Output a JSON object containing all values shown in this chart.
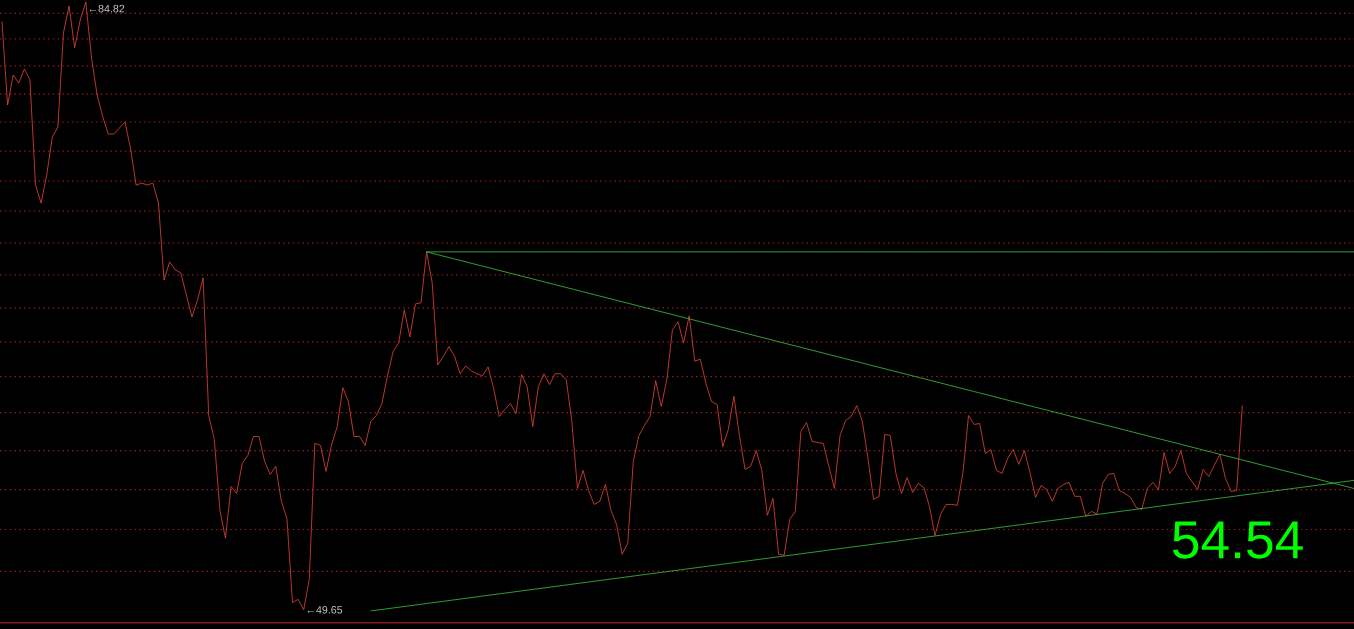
{
  "chart_data": {
    "type": "line",
    "log": "y",
    "grid": "y",
    "categories": [
      null,
      null,
      null,
      null,
      null,
      null,
      null,
      null,
      null,
      null,
      null,
      null,
      null,
      null,
      null,
      null,
      null,
      null,
      null,
      null,
      null,
      null,
      null,
      null,
      null,
      null,
      null,
      null,
      null,
      null,
      null,
      null,
      null,
      null,
      null,
      null,
      null,
      null,
      null,
      null,
      null,
      null,
      null,
      null,
      null,
      null,
      null,
      null,
      null,
      null,
      null,
      null,
      null,
      null,
      null,
      null,
      null,
      null,
      null,
      null,
      null,
      null,
      null,
      null,
      null,
      null,
      null,
      null,
      null,
      null,
      null,
      null,
      null,
      null,
      null,
      null,
      null,
      null,
      null,
      null,
      null,
      null,
      null,
      null,
      null,
      null,
      null,
      null,
      null,
      null,
      null,
      null,
      null,
      null,
      null,
      null,
      null,
      null,
      null,
      null,
      null,
      null,
      null,
      null,
      null,
      null,
      null,
      null,
      null,
      null,
      null,
      null,
      null,
      null,
      null,
      null,
      null,
      null,
      null,
      null,
      null,
      null,
      null,
      null,
      null,
      null,
      null,
      null,
      null,
      null,
      null,
      null,
      null,
      null,
      null,
      null,
      null,
      null,
      null,
      null,
      null,
      null,
      null,
      null,
      null,
      null,
      null,
      null,
      null,
      null,
      null,
      null,
      null,
      null,
      null,
      null,
      null,
      null,
      null,
      null,
      null,
      null,
      null,
      null,
      null,
      null,
      null,
      null,
      null,
      null,
      null,
      null,
      null,
      null,
      null,
      null,
      null,
      null,
      null,
      null,
      null,
      null,
      null,
      null,
      null,
      null,
      null,
      null,
      null,
      null,
      null,
      null,
      null,
      null,
      null,
      null,
      null,
      null,
      null,
      null,
      null,
      null,
      null,
      null,
      null,
      null,
      null,
      null,
      null,
      null,
      null,
      null,
      null,
      null,
      null,
      null,
      null,
      null,
      null,
      null,
      null,
      null,
      null,
      null,
      null,
      null,
      null,
      null,
      null,
      null,
      null,
      null,
      null,
      null,
      null,
      null,
      null,
      null,
      null,
      null,
      null,
      null,
      null
    ],
    "ylim": [
      49.08,
      84.97
    ],
    "yticks": [
      {
        "value": 83.97,
        "label": null
      },
      {
        "value": 82.1,
        "label": null
      },
      {
        "value": 80.17,
        "label": null
      },
      {
        "value": 78.22,
        "label": null
      },
      {
        "value": 76.31,
        "label": null
      },
      {
        "value": 74.38,
        "label": null
      },
      {
        "value": 72.44,
        "label": null
      },
      {
        "value": 70.55,
        "label": null
      },
      {
        "value": 68.59,
        "label": null
      },
      {
        "value": 66.69,
        "label": null
      },
      {
        "value": 64.78,
        "label": null
      },
      {
        "value": 62.87,
        "label": null
      },
      {
        "value": 60.97,
        "label": null
      },
      {
        "value": 59.07,
        "label": null
      },
      {
        "value": 57.13,
        "label": null
      },
      {
        "value": 55.2,
        "label": null
      },
      {
        "value": 53.29,
        "label": null
      },
      {
        "value": 51.36,
        "label": null
      }
    ],
    "series": [
      {
        "color": "#e8443a",
        "values": [
          83.35,
          77.47,
          79.54,
          78.99,
          79.96,
          79.2,
          72.19,
          71.05,
          72.83,
          75.31,
          75.98,
          82.54,
          84.52,
          81.46,
          83.49,
          84.82,
          80.81,
          78.22,
          76.72,
          75.51,
          75.51,
          75.91,
          76.31,
          74.58,
          72.19,
          72.31,
          72.19,
          72.31,
          71.05,
          66.4,
          67.46,
          66.99,
          66.81,
          65.53,
          64.27,
          65.24,
          66.52,
          58.92,
          57.69,
          54.2,
          52.88,
          55.35,
          55.01,
          56.49,
          56.88,
          57.84,
          57.84,
          56.59,
          55.94,
          56.34,
          54.63,
          53.81,
          49.97,
          50.11,
          49.65,
          50.99,
          57.49,
          57.39,
          56.09,
          57.44,
          58.35,
          60.39,
          59.65,
          57.84,
          57.84,
          57.39,
          58.61,
          58.92,
          59.55,
          61.02,
          62.34,
          62.82,
          64.67,
          63.15,
          65.01,
          65.07,
          68.06,
          66.23,
          61.6,
          62.08,
          62.61,
          62.08,
          61.13,
          61.55,
          61.29,
          61.13,
          61.02,
          61.5,
          60.34,
          58.87,
          59.23,
          59.55,
          59.02,
          61.08,
          60.44,
          58.35,
          60.44,
          61.13,
          60.55,
          61.13,
          61.13,
          60.81,
          58.61,
          55.25,
          56.14,
          55.15,
          54.48,
          54.63,
          55.45,
          54.2,
          53.53,
          52.14,
          52.65,
          56.59,
          57.89,
          58.41,
          58.87,
          60.76,
          59.39,
          60.81,
          63.54,
          63.99,
          62.82,
          64.33,
          61.81,
          61.92,
          60.6,
          59.65,
          59.49,
          57.33,
          58.2,
          59.92,
          57.89,
          56.19,
          56.34,
          57.13,
          56.14,
          53.96,
          54.77,
          52.14,
          52.1,
          53.77,
          54.15,
          58.1,
          58.56,
          57.59,
          57.54,
          57.49,
          56.34,
          55.25,
          57.89,
          58.66,
          58.87,
          59.44,
          58.61,
          56.73,
          54.72,
          54.87,
          57.95,
          57.89,
          55.99,
          55.01,
          55.79,
          55.06,
          55.5,
          55.3,
          54.39,
          53.01,
          54.01,
          54.48,
          54.48,
          54.44,
          56.04,
          58.92,
          58.46,
          58.51,
          56.98,
          57.18,
          56.14,
          55.99,
          56.73,
          57.18,
          56.44,
          57.13,
          56.04,
          54.82,
          55.4,
          55.2,
          54.63,
          55.25,
          55.45,
          55.55,
          54.87,
          54.87,
          53.91,
          54.15,
          54.01,
          55.5,
          55.94,
          55.99,
          55.15,
          55.01,
          54.82,
          54.34,
          54.24,
          55.25,
          55.55,
          55.2,
          57.03,
          55.99,
          56.34,
          57.13,
          55.99,
          55.59,
          55.2,
          56.19,
          55.84,
          56.39,
          56.93,
          55.74,
          55.11,
          55.15,
          59.42,
          null,
          null,
          null,
          null,
          null,
          null,
          null,
          null,
          null,
          null,
          null,
          null,
          null,
          null,
          null,
          null,
          null,
          null,
          null,
          null
        ],
        "value_labels": [
          null,
          null,
          null,
          null,
          null,
          null,
          null,
          null,
          null,
          null,
          null,
          null,
          null,
          null,
          null,
          "←84.82",
          null,
          null,
          null,
          null,
          null,
          null,
          null,
          null,
          null,
          null,
          null,
          null,
          null,
          null,
          null,
          null,
          null,
          null,
          null,
          null,
          null,
          null,
          null,
          null,
          null,
          null,
          null,
          null,
          null,
          null,
          null,
          null,
          null,
          null,
          null,
          null,
          null,
          null,
          "←49.65",
          null,
          null,
          null,
          null,
          null,
          null,
          null,
          null,
          null,
          null,
          null,
          null,
          null,
          null,
          null,
          null,
          null,
          null,
          null,
          null,
          null,
          null,
          null,
          null,
          null,
          null,
          null,
          null,
          null,
          null,
          null,
          null,
          null,
          null,
          null,
          null,
          null,
          null,
          null,
          null,
          null,
          null,
          null,
          null,
          null,
          null,
          null,
          null,
          null,
          null,
          null,
          null,
          null,
          null,
          null,
          null,
          null,
          null,
          null,
          null,
          null,
          null,
          null,
          null,
          null,
          null,
          null,
          null,
          null,
          null,
          null,
          null,
          null,
          null,
          null,
          null,
          null,
          null,
          null,
          null,
          null,
          null,
          null,
          null,
          null,
          null,
          null,
          null,
          null,
          null,
          null,
          null,
          null,
          null,
          null,
          null,
          null,
          null,
          null,
          null,
          null,
          null,
          null,
          null,
          null,
          null,
          null,
          null,
          null,
          null,
          null,
          null,
          null,
          null,
          null,
          null,
          null,
          null,
          null,
          null,
          null,
          null,
          null,
          null,
          null,
          null,
          null,
          null,
          null,
          null,
          null,
          null,
          null,
          null,
          null,
          null,
          null,
          null,
          null,
          null,
          null,
          null,
          null,
          null,
          null,
          null,
          null,
          null,
          null,
          null,
          null,
          null,
          null,
          null,
          null,
          null,
          null,
          null,
          null,
          null,
          null,
          null,
          null,
          null,
          null,
          null,
          null,
          null,
          null,
          null,
          null,
          null,
          null,
          null,
          null,
          null,
          null,
          null,
          null,
          null,
          null,
          null,
          null,
          null,
          null,
          null,
          null,
          null
        ]
      },
      {
        "type": "line",
        "color": "#40c040",
        "values": [
          null,
          null,
          null,
          null,
          null,
          null,
          null,
          null,
          null,
          null,
          null,
          null,
          null,
          null,
          null,
          null,
          null,
          null,
          null,
          null,
          null,
          null,
          null,
          null,
          null,
          null,
          null,
          null,
          null,
          null,
          null,
          null,
          null,
          null,
          null,
          null,
          null,
          null,
          null,
          null,
          null,
          null,
          null,
          null,
          null,
          null,
          null,
          null,
          null,
          null,
          null,
          null,
          null,
          null,
          null,
          null,
          null,
          null,
          null,
          null,
          null,
          null,
          null,
          null,
          null,
          null,
          null,
          null,
          null,
          null,
          null,
          null,
          null,
          null,
          null,
          null,
          68.06,
          null,
          null,
          null,
          null,
          null,
          null,
          null,
          null,
          null,
          null,
          null,
          null,
          null,
          null,
          null,
          null,
          null,
          null,
          null,
          null,
          null,
          null,
          null,
          null,
          null,
          null,
          null,
          null,
          null,
          null,
          null,
          null,
          null,
          null,
          null,
          null,
          null,
          null,
          null,
          null,
          null,
          null,
          null,
          null,
          null,
          null,
          null,
          null,
          null,
          null,
          null,
          null,
          null,
          null,
          null,
          null,
          null,
          null,
          null,
          null,
          null,
          null,
          null,
          null,
          null,
          null,
          null,
          null,
          null,
          null,
          null,
          null,
          null,
          null,
          null,
          null,
          null,
          null,
          null,
          null,
          null,
          null,
          null,
          null,
          null,
          null,
          null,
          null,
          null,
          null,
          null,
          null,
          null,
          null,
          null,
          null,
          null,
          null,
          null,
          null,
          null,
          null,
          null,
          null,
          null,
          null,
          null,
          null,
          null,
          null,
          null,
          null,
          null,
          null,
          null,
          null,
          null,
          null,
          null,
          null,
          null,
          null,
          null,
          null,
          null,
          null,
          null,
          null,
          null,
          null,
          null,
          null,
          null,
          null,
          null,
          null,
          null,
          null,
          null,
          null,
          null,
          null,
          null,
          null,
          null,
          null,
          null,
          null,
          null,
          null,
          null,
          null,
          null,
          null,
          null,
          null,
          null,
          null,
          null,
          null,
          null,
          null,
          null,
          null,
          null,
          68.06
        ]
      },
      {
        "type": "line",
        "color": "#40c040",
        "values": [
          null,
          null,
          null,
          null,
          null,
          null,
          null,
          null,
          null,
          null,
          null,
          null,
          null,
          null,
          null,
          null,
          null,
          null,
          null,
          null,
          null,
          null,
          null,
          null,
          null,
          null,
          null,
          null,
          null,
          null,
          null,
          null,
          null,
          null,
          null,
          null,
          null,
          null,
          null,
          null,
          null,
          null,
          null,
          null,
          null,
          null,
          null,
          null,
          null,
          null,
          null,
          null,
          null,
          null,
          null,
          null,
          null,
          null,
          null,
          null,
          null,
          null,
          null,
          null,
          null,
          null,
          null,
          null,
          null,
          null,
          null,
          null,
          null,
          null,
          null,
          null,
          68.06,
          null,
          null,
          null,
          null,
          null,
          null,
          null,
          null,
          null,
          null,
          null,
          null,
          null,
          null,
          null,
          null,
          null,
          null,
          null,
          null,
          null,
          null,
          null,
          null,
          null,
          null,
          null,
          null,
          null,
          null,
          null,
          null,
          null,
          null,
          null,
          null,
          null,
          null,
          null,
          null,
          null,
          null,
          null,
          null,
          null,
          null,
          null,
          null,
          null,
          null,
          null,
          null,
          null,
          null,
          null,
          null,
          null,
          null,
          null,
          null,
          null,
          null,
          null,
          null,
          null,
          null,
          null,
          null,
          null,
          null,
          null,
          null,
          null,
          null,
          null,
          null,
          null,
          null,
          null,
          null,
          null,
          null,
          null,
          null,
          null,
          null,
          null,
          null,
          null,
          null,
          null,
          null,
          null,
          null,
          null,
          null,
          null,
          null,
          null,
          null,
          null,
          null,
          null,
          null,
          null,
          null,
          null,
          null,
          null,
          null,
          null,
          null,
          null,
          null,
          null,
          null,
          null,
          null,
          null,
          null,
          null,
          null,
          null,
          null,
          null,
          null,
          null,
          null,
          null,
          null,
          null,
          null,
          null,
          null,
          null,
          null,
          null,
          null,
          null,
          null,
          null,
          null,
          null,
          null,
          null,
          null,
          null,
          null,
          null,
          null,
          null,
          null,
          null,
          null,
          null,
          null,
          null,
          null,
          null,
          null,
          null,
          null,
          null,
          null,
          null,
          55.25
        ]
      },
      {
        "type": "line",
        "color": "#40c040",
        "values": [
          null,
          null,
          null,
          null,
          null,
          null,
          null,
          null,
          null,
          null,
          null,
          null,
          null,
          null,
          null,
          null,
          null,
          null,
          null,
          null,
          null,
          null,
          null,
          null,
          null,
          null,
          null,
          null,
          null,
          null,
          null,
          null,
          null,
          null,
          null,
          null,
          null,
          null,
          null,
          null,
          null,
          null,
          null,
          null,
          null,
          null,
          null,
          null,
          null,
          null,
          null,
          null,
          null,
          null,
          null,
          null,
          null,
          null,
          null,
          null,
          null,
          null,
          null,
          null,
          null,
          null,
          49.6,
          null,
          null,
          null,
          null,
          null,
          null,
          null,
          null,
          null,
          null,
          null,
          null,
          null,
          null,
          null,
          null,
          null,
          null,
          null,
          null,
          null,
          null,
          null,
          null,
          null,
          null,
          null,
          null,
          null,
          null,
          null,
          null,
          null,
          null,
          null,
          null,
          null,
          null,
          null,
          null,
          null,
          null,
          null,
          null,
          null,
          null,
          null,
          null,
          null,
          null,
          null,
          null,
          null,
          null,
          null,
          null,
          null,
          null,
          null,
          null,
          null,
          null,
          null,
          null,
          null,
          null,
          null,
          null,
          null,
          null,
          null,
          null,
          null,
          null,
          null,
          null,
          null,
          null,
          null,
          null,
          null,
          null,
          null,
          null,
          null,
          null,
          null,
          null,
          null,
          null,
          null,
          null,
          null,
          null,
          null,
          null,
          null,
          null,
          null,
          null,
          null,
          null,
          null,
          null,
          null,
          null,
          null,
          null,
          null,
          null,
          null,
          null,
          null,
          null,
          null,
          null,
          null,
          null,
          null,
          null,
          null,
          null,
          null,
          null,
          null,
          null,
          null,
          null,
          null,
          null,
          null,
          null,
          null,
          null,
          null,
          null,
          null,
          null,
          null,
          null,
          null,
          null,
          null,
          null,
          null,
          null,
          null,
          null,
          null,
          null,
          null,
          null,
          null,
          null,
          null,
          null,
          null,
          null,
          null,
          null,
          null,
          null,
          null,
          null,
          null,
          null,
          null,
          null,
          null,
          null,
          null,
          null,
          null,
          null,
          null,
          55.65
        ]
      }
    ],
    "annotations": [
      "54.54"
    ]
  }
}
